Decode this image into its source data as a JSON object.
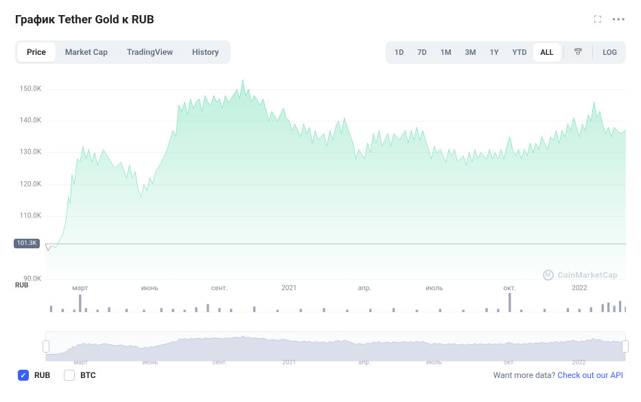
{
  "header": {
    "title": "График Tether Gold к RUB"
  },
  "tabs": {
    "items": [
      "Price",
      "Market Cap",
      "TradingView",
      "History"
    ],
    "active_index": 0
  },
  "ranges": {
    "items": [
      "1D",
      "7D",
      "1M",
      "3M",
      "1Y",
      "YTD",
      "ALL"
    ],
    "active_index": 6,
    "log_label": "LOG"
  },
  "chart": {
    "type": "area",
    "ylim": [
      90,
      155
    ],
    "y_ticks": [
      90,
      101.3,
      110,
      120,
      130,
      140,
      150
    ],
    "y_tick_labels": [
      "90.0K",
      "101.3K",
      "110.0K",
      "120.0K",
      "130.0K",
      "140.0K",
      "150.0K"
    ],
    "current_value": 101.3,
    "current_label": "101.3K",
    "x_ticks_pos": [
      6,
      18,
      30,
      42,
      55,
      67,
      80,
      92
    ],
    "x_tick_labels": [
      "март",
      "июнь",
      "сент.",
      "2021",
      "апр.",
      "июль",
      "окт.",
      "2022"
    ],
    "currency_label": "RUB",
    "line_color": "#16c784",
    "fill_top_color": "rgba(22,199,132,0.28)",
    "fill_bottom_color": "rgba(22,199,132,0.01)",
    "background_color": "#ffffff",
    "grid_color": "rgba(128,128,128,0.08)",
    "start_marker_color": "#ea3943",
    "series": [
      [
        0,
        101
      ],
      [
        0.5,
        99
      ],
      [
        1,
        100.5
      ],
      [
        1.8,
        100
      ],
      [
        2.2,
        101.5
      ],
      [
        3,
        104
      ],
      [
        3.5,
        108
      ],
      [
        4,
        116
      ],
      [
        4.3,
        114
      ],
      [
        4.6,
        123
      ],
      [
        5,
        120
      ],
      [
        5.5,
        128
      ],
      [
        6,
        127
      ],
      [
        6.5,
        132
      ],
      [
        7,
        128
      ],
      [
        7.5,
        131
      ],
      [
        8,
        127
      ],
      [
        8.5,
        130
      ],
      [
        9,
        126
      ],
      [
        10,
        131
      ],
      [
        11,
        128
      ],
      [
        12,
        125
      ],
      [
        13,
        127
      ],
      [
        14,
        122
      ],
      [
        14.5,
        126
      ],
      [
        15,
        122
      ],
      [
        15.5,
        124
      ],
      [
        16,
        118
      ],
      [
        16.5,
        116
      ],
      [
        17,
        120
      ],
      [
        17.5,
        118
      ],
      [
        18,
        122
      ],
      [
        18.5,
        120
      ],
      [
        19,
        124
      ],
      [
        20,
        127
      ],
      [
        21,
        131
      ],
      [
        22,
        137
      ],
      [
        22.5,
        135
      ],
      [
        23,
        145
      ],
      [
        23.5,
        143
      ],
      [
        24,
        146
      ],
      [
        24.5,
        142
      ],
      [
        25,
        147
      ],
      [
        25.5,
        144
      ],
      [
        26,
        146
      ],
      [
        26.5,
        147
      ],
      [
        27,
        143
      ],
      [
        27.5,
        148
      ],
      [
        28,
        146
      ],
      [
        28.5,
        145
      ],
      [
        29,
        148
      ],
      [
        29.5,
        146
      ],
      [
        30,
        147
      ],
      [
        30.5,
        144
      ],
      [
        31,
        148
      ],
      [
        31.5,
        146
      ],
      [
        32,
        147
      ],
      [
        33,
        150
      ],
      [
        33.5,
        147
      ],
      [
        34,
        153
      ],
      [
        34.5,
        148
      ],
      [
        35,
        150
      ],
      [
        35.5,
        146
      ],
      [
        36,
        148
      ],
      [
        37,
        145
      ],
      [
        37.5,
        147
      ],
      [
        38.5,
        140
      ],
      [
        39,
        143
      ],
      [
        40,
        140
      ],
      [
        41,
        144
      ],
      [
        41.5,
        141
      ],
      [
        42,
        140
      ],
      [
        42.5,
        137
      ],
      [
        43,
        139
      ],
      [
        44,
        135
      ],
      [
        44.5,
        139
      ],
      [
        45,
        136
      ],
      [
        45.5,
        138
      ],
      [
        46,
        133
      ],
      [
        46.5,
        137
      ],
      [
        47,
        134
      ],
      [
        48,
        136
      ],
      [
        48.5,
        132
      ],
      [
        49,
        137
      ],
      [
        49.5,
        134
      ],
      [
        50,
        138
      ],
      [
        50.5,
        140
      ],
      [
        51,
        136
      ],
      [
        51.5,
        141
      ],
      [
        52,
        138
      ],
      [
        53,
        133
      ],
      [
        53.5,
        128
      ],
      [
        54,
        131
      ],
      [
        55,
        128
      ],
      [
        55.5,
        133
      ],
      [
        56,
        130
      ],
      [
        56.5,
        136
      ],
      [
        57,
        133
      ],
      [
        57.5,
        137
      ],
      [
        58,
        132
      ],
      [
        59,
        136
      ],
      [
        59.5,
        132
      ],
      [
        60,
        136
      ],
      [
        61,
        134
      ],
      [
        62,
        137
      ],
      [
        62.5,
        133
      ],
      [
        63,
        137
      ],
      [
        63.5,
        134
      ],
      [
        64,
        138
      ],
      [
        64.5,
        134
      ],
      [
        65,
        137
      ],
      [
        66,
        131
      ],
      [
        66.5,
        128
      ],
      [
        67,
        132
      ],
      [
        67.5,
        130
      ],
      [
        68,
        131
      ],
      [
        69,
        127
      ],
      [
        69.5,
        131
      ],
      [
        70,
        129
      ],
      [
        70.5,
        131
      ],
      [
        71,
        127
      ],
      [
        72,
        129
      ],
      [
        72.5,
        126
      ],
      [
        73,
        130
      ],
      [
        73.5,
        127
      ],
      [
        74,
        131
      ],
      [
        74.5,
        128
      ],
      [
        75,
        130
      ],
      [
        76,
        128
      ],
      [
        76.5,
        131
      ],
      [
        77,
        128
      ],
      [
        77.5,
        130
      ],
      [
        78,
        128
      ],
      [
        78.5,
        131
      ],
      [
        79,
        128
      ],
      [
        79.5,
        132
      ],
      [
        80,
        135
      ],
      [
        80.5,
        131
      ],
      [
        81,
        129
      ],
      [
        81.5,
        131
      ],
      [
        82,
        128
      ],
      [
        82.5,
        131
      ],
      [
        83,
        129
      ],
      [
        83.5,
        133
      ],
      [
        84,
        130
      ],
      [
        84.5,
        133
      ],
      [
        85,
        131
      ],
      [
        85.5,
        135
      ],
      [
        86,
        133
      ],
      [
        86.5,
        131
      ],
      [
        87,
        135
      ],
      [
        87.5,
        134
      ],
      [
        88,
        137
      ],
      [
        88.5,
        133
      ],
      [
        89,
        137
      ],
      [
        89.5,
        135
      ],
      [
        90,
        139
      ],
      [
        90.5,
        137
      ],
      [
        91,
        141
      ],
      [
        92,
        135
      ],
      [
        92.5,
        139
      ],
      [
        93,
        137
      ],
      [
        93.5,
        142
      ],
      [
        94,
        140
      ],
      [
        94.5,
        146
      ],
      [
        95,
        141
      ],
      [
        95.5,
        143
      ],
      [
        96,
        139
      ],
      [
        96.5,
        136
      ],
      [
        97,
        138
      ],
      [
        97.5,
        135
      ],
      [
        98,
        138
      ],
      [
        99,
        136
      ],
      [
        100,
        137
      ]
    ],
    "volume_color": "#a1a7bb",
    "volumes": [
      [
        1,
        8
      ],
      [
        3,
        4
      ],
      [
        5,
        3
      ],
      [
        6,
        22
      ],
      [
        7,
        5
      ],
      [
        9,
        3
      ],
      [
        11,
        6
      ],
      [
        14,
        4
      ],
      [
        17,
        3
      ],
      [
        20,
        5
      ],
      [
        22,
        4
      ],
      [
        24,
        3
      ],
      [
        26,
        6
      ],
      [
        28,
        10
      ],
      [
        30,
        5
      ],
      [
        32,
        4
      ],
      [
        36,
        7
      ],
      [
        40,
        3
      ],
      [
        44,
        4
      ],
      [
        48,
        5
      ],
      [
        52,
        3
      ],
      [
        56,
        4
      ],
      [
        60,
        5
      ],
      [
        64,
        3
      ],
      [
        68,
        4
      ],
      [
        72,
        3
      ],
      [
        76,
        5
      ],
      [
        78,
        4
      ],
      [
        80,
        24
      ],
      [
        82,
        3
      ],
      [
        86,
        4
      ],
      [
        90,
        5
      ],
      [
        92,
        4
      ],
      [
        94,
        6
      ],
      [
        96,
        10
      ],
      [
        97,
        12
      ],
      [
        98,
        8
      ],
      [
        99,
        14
      ],
      [
        100,
        7
      ]
    ],
    "watermark": "CoinMarketCap"
  },
  "mini": {
    "line_color": "#7b8ab8",
    "fill_color": "rgba(123,138,184,0.25)",
    "x_ticks_pos": [
      6,
      18,
      30,
      42,
      55,
      67,
      80,
      92
    ],
    "x_tick_labels": [
      "март",
      "июнь",
      "сент.",
      "2021",
      "апр.",
      "июль",
      "окт.",
      "2022"
    ]
  },
  "footer": {
    "currencies": [
      {
        "label": "RUB",
        "checked": true
      },
      {
        "label": "BTC",
        "checked": false
      }
    ],
    "more_data_text": "Want more data?",
    "api_link_text": "Check out our API"
  }
}
